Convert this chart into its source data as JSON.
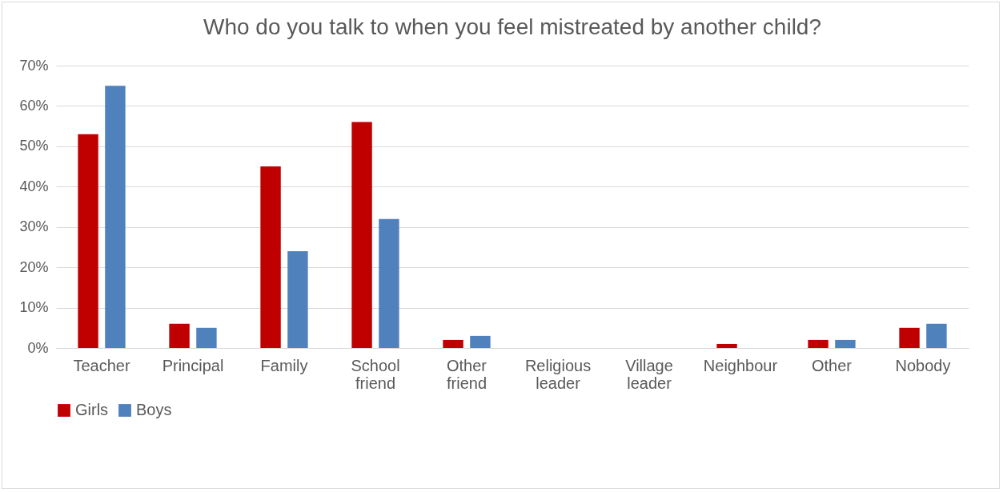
{
  "chart_data": {
    "type": "bar",
    "title": "Who do you talk to when you feel mistreated by another child?",
    "categories": [
      "Teacher",
      "Principal",
      "Family",
      "School friend",
      "Other friend",
      "Religious leader",
      "Village leader",
      "Neighbour",
      "Other",
      "Nobody"
    ],
    "series": [
      {
        "name": "Girls",
        "color": "#c00000",
        "values": [
          53,
          6,
          45,
          56,
          2,
          0,
          0,
          1,
          2,
          5
        ]
      },
      {
        "name": "Boys",
        "color": "#4f81bd",
        "values": [
          65,
          5,
          24,
          32,
          3,
          0,
          0,
          0,
          2,
          6
        ]
      }
    ],
    "ylim": [
      0,
      70
    ],
    "yticks": [
      {
        "value": 0,
        "label": "0%"
      },
      {
        "value": 10,
        "label": "10%"
      },
      {
        "value": 20,
        "label": "20%"
      },
      {
        "value": 30,
        "label": "30%"
      },
      {
        "value": 40,
        "label": "40%"
      },
      {
        "value": 50,
        "label": "50%"
      },
      {
        "value": 60,
        "label": "60%"
      },
      {
        "value": 70,
        "label": "70%"
      }
    ],
    "grid": "y",
    "legend": "bottom"
  }
}
